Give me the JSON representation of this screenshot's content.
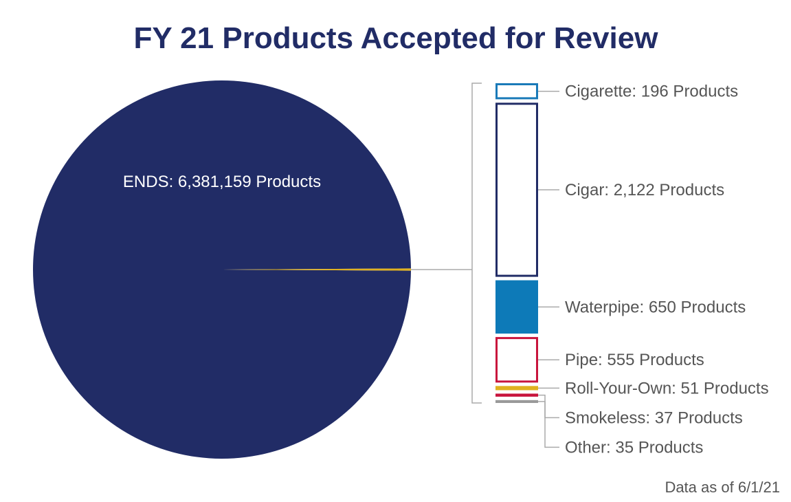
{
  "chart_data": {
    "type": "pie",
    "title": "FY 21 Products Accepted for Review",
    "note": "Data as of 6/1/21",
    "colors": {
      "title": "#212c66",
      "navy": "#212c66",
      "cigarette": "#1a7ab8",
      "waterpipe": "#0d7ab8",
      "pipe": "#c8143c",
      "ryo": "#e0b11f",
      "smokeless": "#c8143c",
      "other": "#9a9a9a",
      "leader": "#aaaaaa",
      "label_text": "#555555"
    },
    "pie": {
      "slices": [
        {
          "name": "ENDS",
          "value": 6381159,
          "label": "ENDS: 6,381,159 Products",
          "color": "#212c66"
        },
        {
          "name": "Other products",
          "value": 3646,
          "color": "#e0b11f"
        }
      ]
    },
    "breakdown": [
      {
        "name": "Cigarette",
        "value": 196,
        "label": "Cigarette: 196 Products",
        "color": "#1a7ab8",
        "style": "outline"
      },
      {
        "name": "Cigar",
        "value": 2122,
        "label": "Cigar: 2,122 Products",
        "color": "#212c66",
        "style": "outline"
      },
      {
        "name": "Waterpipe",
        "value": 650,
        "label": "Waterpipe: 650 Products",
        "color": "#0d7ab8",
        "style": "filled"
      },
      {
        "name": "Pipe",
        "value": 555,
        "label": "Pipe: 555 Products",
        "color": "#c8143c",
        "style": "outline"
      },
      {
        "name": "Roll-Your-Own",
        "value": 51,
        "label": "Roll-Your-Own: 51 Products",
        "color": "#e0b11f",
        "style": "filled"
      },
      {
        "name": "Smokeless",
        "value": 37,
        "label": "Smokeless: 37 Products",
        "color": "#c8143c",
        "style": "filled"
      },
      {
        "name": "Other",
        "value": 35,
        "label": "Other: 35 Products",
        "color": "#9a9a9a",
        "style": "filled"
      }
    ]
  }
}
